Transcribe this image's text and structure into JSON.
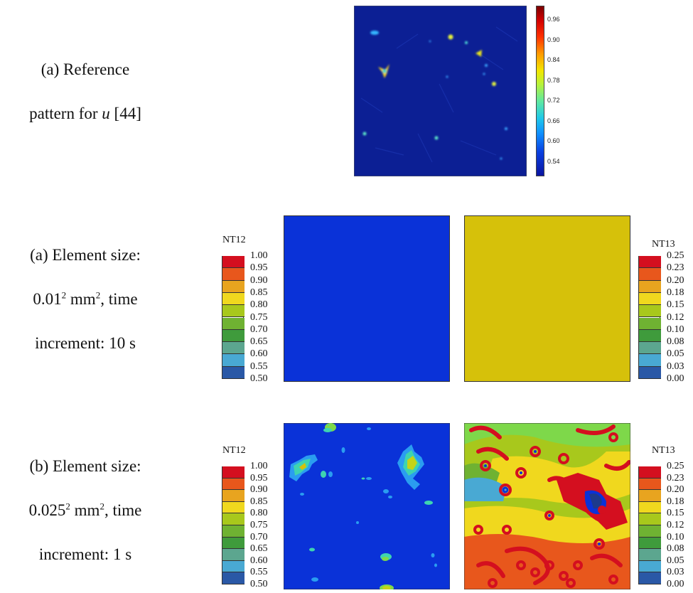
{
  "ref_caption": {
    "line1": "(a) Reference",
    "line2_pre": "pattern for ",
    "line2_var": "u",
    "line2_post": " [44]"
  },
  "row_a_caption": {
    "line1": "(a) Element size:",
    "line2_base": "0.01",
    "line2_sup": "2",
    "line2_unit": " mm",
    "line2_unit_sup": "2",
    "line2_post": ", time",
    "line3": "increment: 10 s"
  },
  "row_b_caption": {
    "line1": "(b) Element size:",
    "line2_base": "0.025",
    "line2_sup": "2",
    "line2_unit": " mm",
    "line2_unit_sup": "2",
    "line2_post": ", time",
    "line3": "increment: 1 s"
  },
  "ref_colorbar_ticks": [
    "0.96",
    "0.90",
    "0.84",
    "0.78",
    "0.72",
    "0.66",
    "0.60",
    "0.54"
  ],
  "nt12": {
    "title": "NT12",
    "ticks": [
      "1.00",
      "0.95",
      "0.90",
      "0.85",
      "0.80",
      "0.75",
      "0.70",
      "0.65",
      "0.60",
      "0.55",
      "0.50"
    ]
  },
  "nt13": {
    "title": "NT13",
    "ticks": [
      "0.25",
      "0.23",
      "0.20",
      "0.18",
      "0.15",
      "0.12",
      "0.10",
      "0.08",
      "0.05",
      "0.03",
      "0.00"
    ]
  },
  "colors": {
    "contour_bands": [
      "#d40f1f",
      "#e8571c",
      "#e8a41f",
      "#f0d81e",
      "#a8c81c",
      "#6fb232",
      "#3f9b3c",
      "#5ca68f",
      "#49a9d3",
      "#2a58a6",
      "#1d3a8c"
    ],
    "field_blue": "#0a32d8",
    "field_yellow": "#d6c10a",
    "ref_bg": "#0c1f94"
  }
}
